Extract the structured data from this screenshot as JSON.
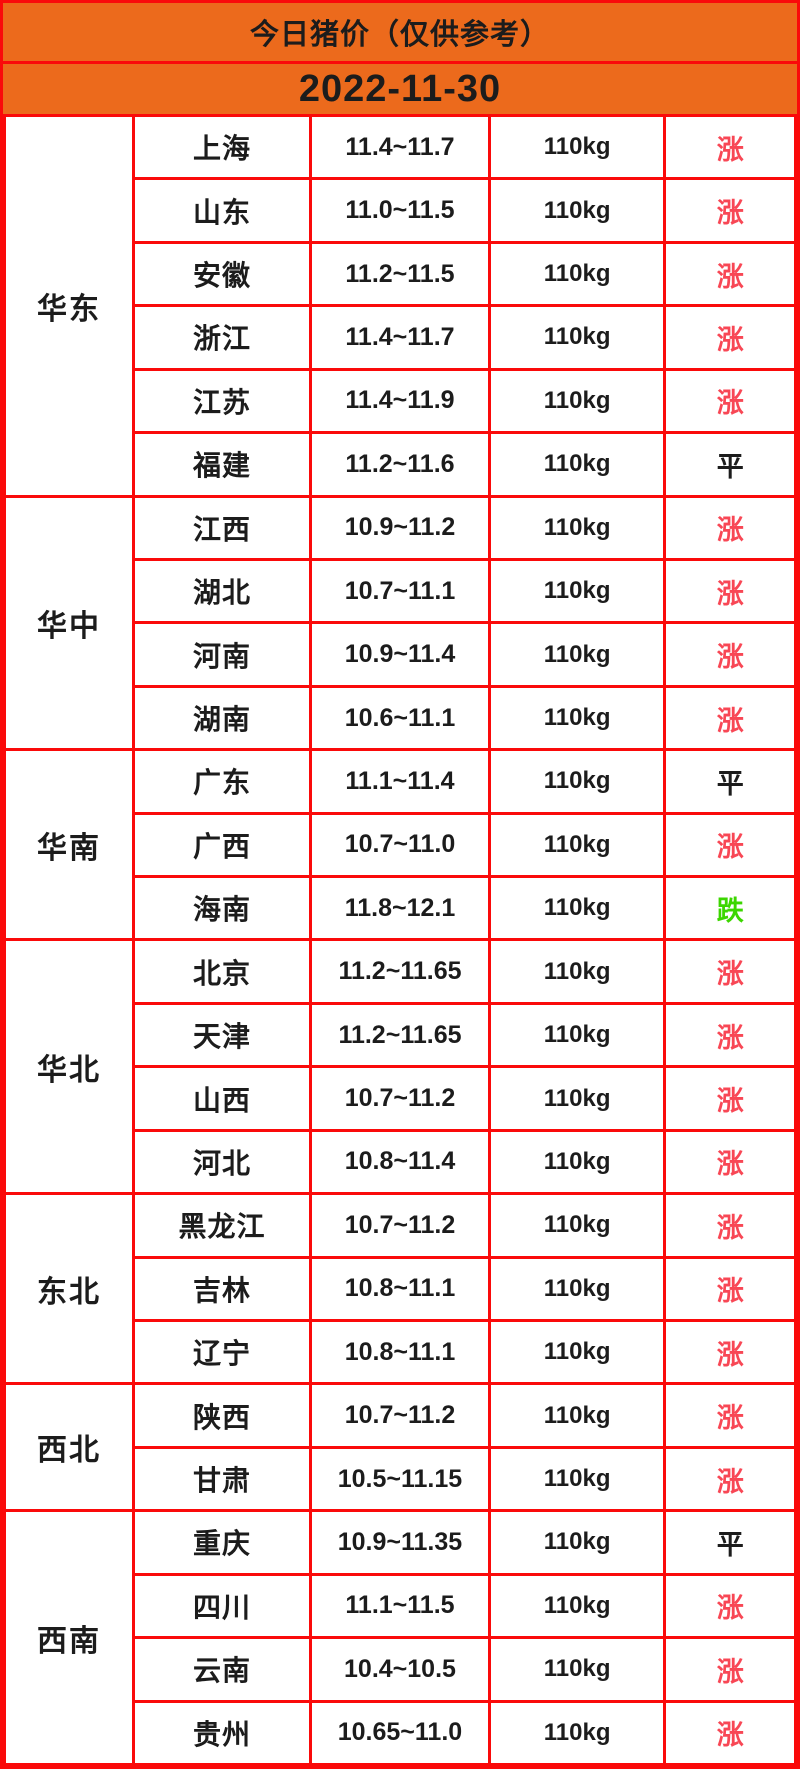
{
  "header": {
    "title": "今日猪价（仅供参考）",
    "date": "2022-11-30"
  },
  "colors": {
    "header_orange": "#EC6A1C",
    "border_red": "#FA0A0A",
    "up_red": "#F84755",
    "down_green": "#3CD600",
    "text_dark": "#1C1C1C"
  },
  "legend_classes": {
    "涨": "up",
    "平": "flat",
    "跌": "down"
  },
  "chart_data": {
    "type": "table",
    "title": "今日猪价（仅供参考）",
    "date": "2022-11-30",
    "columns": [
      "region",
      "province",
      "price_range",
      "weight",
      "trend"
    ],
    "rows": [
      [
        "华东",
        "上海",
        "11.4~11.7",
        "110kg",
        "涨"
      ],
      [
        "华东",
        "山东",
        "11.0~11.5",
        "110kg",
        "涨"
      ],
      [
        "华东",
        "安徽",
        "11.2~11.5",
        "110kg",
        "涨"
      ],
      [
        "华东",
        "浙江",
        "11.4~11.7",
        "110kg",
        "涨"
      ],
      [
        "华东",
        "江苏",
        "11.4~11.9",
        "110kg",
        "涨"
      ],
      [
        "华东",
        "福建",
        "11.2~11.6",
        "110kg",
        "平"
      ],
      [
        "华中",
        "江西",
        "10.9~11.2",
        "110kg",
        "涨"
      ],
      [
        "华中",
        "湖北",
        "10.7~11.1",
        "110kg",
        "涨"
      ],
      [
        "华中",
        "河南",
        "10.9~11.4",
        "110kg",
        "涨"
      ],
      [
        "华中",
        "湖南",
        "10.6~11.1",
        "110kg",
        "涨"
      ],
      [
        "华南",
        "广东",
        "11.1~11.4",
        "110kg",
        "平"
      ],
      [
        "华南",
        "广西",
        "10.7~11.0",
        "110kg",
        "涨"
      ],
      [
        "华南",
        "海南",
        "11.8~12.1",
        "110kg",
        "跌"
      ],
      [
        "华北",
        "北京",
        "11.2~11.65",
        "110kg",
        "涨"
      ],
      [
        "华北",
        "天津",
        "11.2~11.65",
        "110kg",
        "涨"
      ],
      [
        "华北",
        "山西",
        "10.7~11.2",
        "110kg",
        "涨"
      ],
      [
        "华北",
        "河北",
        "10.8~11.4",
        "110kg",
        "涨"
      ],
      [
        "东北",
        "黑龙江",
        "10.7~11.2",
        "110kg",
        "涨"
      ],
      [
        "东北",
        "吉林",
        "10.8~11.1",
        "110kg",
        "涨"
      ],
      [
        "东北",
        "辽宁",
        "10.8~11.1",
        "110kg",
        "涨"
      ],
      [
        "西北",
        "陕西",
        "10.7~11.2",
        "110kg",
        "涨"
      ],
      [
        "西北",
        "甘肃",
        "10.5~11.15",
        "110kg",
        "涨"
      ],
      [
        "西南",
        "重庆",
        "10.9~11.35",
        "110kg",
        "平"
      ],
      [
        "西南",
        "四川",
        "11.1~11.5",
        "110kg",
        "涨"
      ],
      [
        "西南",
        "云南",
        "10.4~10.5",
        "110kg",
        "涨"
      ],
      [
        "西南",
        "贵州",
        "10.65~11.0",
        "110kg",
        "涨"
      ]
    ]
  }
}
